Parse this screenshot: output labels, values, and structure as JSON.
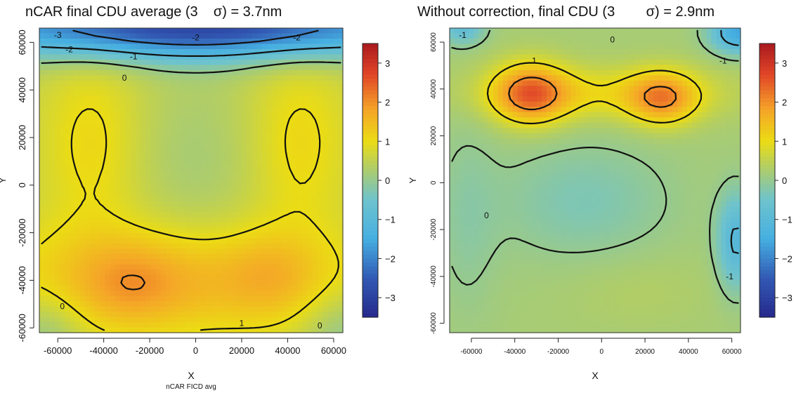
{
  "chart_data": [
    {
      "type": "heatmap",
      "title": "nCAR final CDU average (3    σ) = 3.7nm",
      "xlabel": "X",
      "ylabel": "Y",
      "caption": "nCAR FICD avg",
      "xlim": [
        -68000,
        64000
      ],
      "ylim": [
        -62000,
        66000
      ],
      "xticks": [
        "-60000",
        "-40000",
        "-20000",
        "0",
        "20000",
        "40000",
        "60000"
      ],
      "yticks": [
        "-60000",
        "-40000",
        "-20000",
        "0",
        "20000",
        "40000",
        "60000"
      ],
      "color_range": [
        -3.5,
        3.5
      ],
      "colorbar_ticks": [
        "3",
        "2",
        "1",
        "0",
        "−1",
        "−2",
        "−3"
      ],
      "contour_labels": [
        {
          "text": "-3",
          "x": -60000,
          "y": 63000
        },
        {
          "text": "-2",
          "x": -55000,
          "y": 57000
        },
        {
          "text": "-2",
          "x": 0,
          "y": 62000
        },
        {
          "text": "-2",
          "x": 44000,
          "y": 62000
        },
        {
          "text": "-1",
          "x": -27000,
          "y": 54000
        },
        {
          "text": "0",
          "x": -31000,
          "y": 45000
        },
        {
          "text": "1",
          "x": 20000,
          "y": -58000
        },
        {
          "text": "0",
          "x": -58000,
          "y": -51000
        },
        {
          "text": "0",
          "x": 54000,
          "y": -59000
        }
      ],
      "field": [
        {
          "x": 0,
          "y": 66000,
          "amplitude": -3.3,
          "sx": 80000,
          "sy": 9000
        },
        {
          "x": -10000,
          "y": -40000,
          "amplitude": 1.1,
          "sx": 55000,
          "sy": 17000
        },
        {
          "x": -45000,
          "y": 18000,
          "amplitude": 0.6,
          "sx": 16000,
          "sy": 28000
        },
        {
          "x": 45000,
          "y": 18000,
          "amplitude": 0.6,
          "sx": 16000,
          "sy": 28000
        },
        {
          "x": -28000,
          "y": -42000,
          "amplitude": 0.5,
          "sx": 15000,
          "sy": 12000
        },
        {
          "x": 33000,
          "y": -38000,
          "amplitude": 0.4,
          "sx": 14000,
          "sy": 12000
        },
        {
          "x": 0,
          "y": 8000,
          "amplitude": -0.3,
          "sx": 22000,
          "sy": 32000
        },
        {
          "x": -66000,
          "y": -62000,
          "amplitude": -0.6,
          "sx": 12000,
          "sy": 12000
        },
        {
          "x": 64000,
          "y": -62000,
          "amplitude": -0.6,
          "sx": 12000,
          "sy": 12000
        }
      ],
      "field_base": 0.5
    },
    {
      "type": "heatmap",
      "title": "Without correction, final CDU (3        σ) = 2.9nm",
      "xlabel": "X",
      "ylabel": "Y",
      "xlim": [
        -70000,
        64000
      ],
      "ylim": [
        -64000,
        66000
      ],
      "xticks": [
        "-60000",
        "-40000",
        "-20000",
        "0",
        "20000",
        "40000",
        "60000"
      ],
      "yticks": [
        "-60000",
        "-40000",
        "-20000",
        "0",
        "20000",
        "40000",
        "60000"
      ],
      "color_range": [
        -3.5,
        3.5
      ],
      "colorbar_ticks": [
        "3",
        "2",
        "1",
        "0",
        "−1",
        "−2",
        "−3"
      ],
      "contour_labels": [
        {
          "text": "-1",
          "x": -64000,
          "y": 63000
        },
        {
          "text": "0",
          "x": 5000,
          "y": 61000
        },
        {
          "text": "-1",
          "x": 56000,
          "y": 52000
        },
        {
          "text": "1",
          "x": -31000,
          "y": 52000
        },
        {
          "text": "0",
          "x": -53000,
          "y": -14000
        },
        {
          "text": "-1",
          "x": 59000,
          "y": -40000
        }
      ],
      "field": [
        {
          "x": -33000,
          "y": 38000,
          "amplitude": 1.9,
          "sx": 12000,
          "sy": 9000
        },
        {
          "x": 28000,
          "y": 36000,
          "amplitude": 1.5,
          "sx": 11000,
          "sy": 8000
        },
        {
          "x": 0,
          "y": 38000,
          "amplitude": 0.8,
          "sx": 40000,
          "sy": 8000
        },
        {
          "x": -8000,
          "y": -8000,
          "amplitude": -0.5,
          "sx": 28000,
          "sy": 18000
        },
        {
          "x": 62000,
          "y": -25000,
          "amplitude": -1.3,
          "sx": 6000,
          "sy": 14000
        },
        {
          "x": 63000,
          "y": 64000,
          "amplitude": -1.8,
          "sx": 9000,
          "sy": 6000
        },
        {
          "x": -64000,
          "y": 66000,
          "amplitude": -1.0,
          "sx": 7000,
          "sy": 5000
        },
        {
          "x": -62000,
          "y": -15000,
          "amplitude": -0.3,
          "sx": 10000,
          "sy": 30000
        },
        {
          "x": 15000,
          "y": -45000,
          "amplitude": 0.15,
          "sx": 25000,
          "sy": 12000
        }
      ],
      "field_base": 0.2
    }
  ]
}
